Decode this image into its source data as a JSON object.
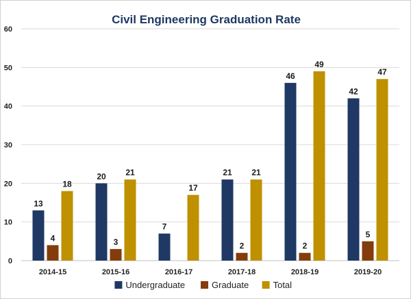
{
  "chart_data": {
    "type": "bar",
    "title": "Civil Engineering Graduation Rate",
    "xlabel": "",
    "ylabel": "",
    "ylim": [
      0,
      60
    ],
    "yticks": [
      0,
      10,
      20,
      30,
      40,
      50,
      60
    ],
    "grid": true,
    "legend_position": "bottom",
    "categories": [
      "2014-15",
      "2015-16",
      "2016-17",
      "2017-18",
      "2018-19",
      "2019-20"
    ],
    "series": [
      {
        "name": "Undergraduate",
        "color": "#1f3864",
        "values": [
          13,
          20,
          7,
          21,
          46,
          42
        ]
      },
      {
        "name": "Graduate",
        "color": "#843c0c",
        "values": [
          4,
          3,
          null,
          2,
          2,
          5
        ]
      },
      {
        "name": "Total",
        "color": "#bf9000",
        "values": [
          18,
          21,
          17,
          21,
          49,
          47
        ]
      }
    ]
  }
}
